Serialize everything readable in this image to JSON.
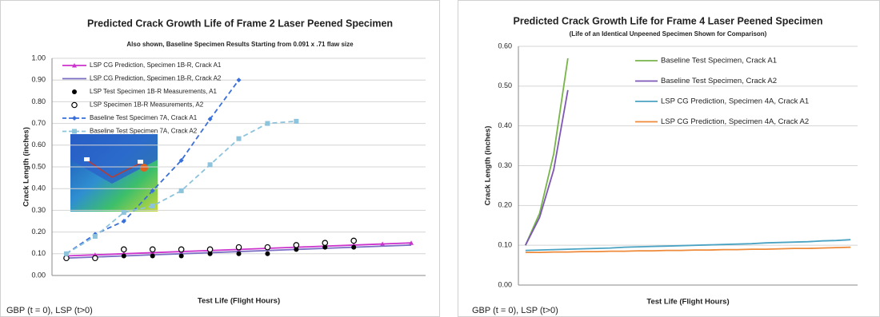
{
  "chart_data": [
    {
      "type": "line",
      "title": "Predicted Crack Growth Life of Frame 2 Laser Peened Specimen",
      "subtitle": "Also shown, Baseline Specimen Results Starting from 0.091 x .71 flaw size",
      "y_label": "Crack Length (inches)",
      "x_label": "Test Life (Flight Hours)",
      "footnote": "GBP (t = 0), LSP (t>0)",
      "legend": "upper left",
      "grid": true,
      "categories": [
        null,
        null,
        null,
        null,
        null,
        null,
        null,
        null,
        null,
        null,
        null,
        null,
        null
      ],
      "ylim": [
        0,
        1
      ],
      "yticks": [
        {
          "value": 0,
          "label": "0.00"
        },
        {
          "value": 0.1,
          "label": "0.10"
        },
        {
          "value": 0.2,
          "label": "0.20"
        },
        {
          "value": 0.3,
          "label": "0.30"
        },
        {
          "value": 0.4,
          "label": "0.40"
        },
        {
          "value": 0.5,
          "label": "0.50"
        },
        {
          "value": 0.6,
          "label": "0.60"
        },
        {
          "value": 0.7,
          "label": "0.70"
        },
        {
          "value": 0.8,
          "label": "0.80"
        },
        {
          "value": 0.9,
          "label": "0.90"
        },
        {
          "value": 1,
          "label": "1.00"
        }
      ],
      "series": [
        {
          "name": "LSP CG Prediction, Specimen 1B-R, Crack A1",
          "color": "#cc33cc",
          "marker": "triangle",
          "line": true,
          "dash": false,
          "values": [
            0.09,
            0.095,
            0.1,
            0.105,
            0.11,
            0.115,
            0.12,
            0.125,
            0.13,
            0.135,
            0.14,
            0.145,
            0.15
          ]
        },
        {
          "name": "LSP CG Prediction, Specimen 1B-R, Crack A2",
          "color": "#7b6fc4",
          "marker": "none",
          "line": true,
          "dash": false,
          "values": [
            0.08,
            0.085,
            0.09,
            0.095,
            0.1,
            0.105,
            0.11,
            0.115,
            0.12,
            0.125,
            0.13,
            0.135,
            0.14
          ]
        },
        {
          "name": "LSP Test Specimen 1B-R Measurements, A1",
          "color": "#000000",
          "marker": "circle",
          "line": false,
          "dash": false,
          "values": [
            0.08,
            0.08,
            0.09,
            0.09,
            0.09,
            0.1,
            0.1,
            0.1,
            0.12,
            0.13,
            0.13,
            null,
            null
          ]
        },
        {
          "name": "LSP Specimen 1B-R Measurements, A2",
          "color": "#000000",
          "marker": "open-circle",
          "line": false,
          "dash": false,
          "values": [
            0.08,
            0.08,
            0.12,
            0.12,
            0.12,
            0.12,
            0.13,
            0.13,
            0.14,
            0.15,
            0.16,
            null,
            null
          ]
        },
        {
          "name": "Baseline Test Specimen 7A, Crack A1",
          "color": "#3a6fd8",
          "marker": "diamond",
          "line": true,
          "dash": true,
          "values": [
            0.1,
            0.19,
            0.25,
            0.39,
            0.53,
            0.72,
            0.9,
            null,
            null,
            null,
            null,
            null,
            null
          ]
        },
        {
          "name": "Baseline Test Specimen 7A, Crack A2",
          "color": "#8ec3dc",
          "marker": "square",
          "line": true,
          "dash": true,
          "values": [
            0.1,
            0.18,
            0.29,
            0.32,
            0.39,
            0.51,
            0.63,
            0.7,
            0.71,
            null,
            null,
            null,
            null
          ]
        }
      ]
    },
    {
      "type": "line",
      "title": "Predicted Crack Growth Life for Frame 4 Laser Peened Specimen",
      "subtitle": "(Life of an Identical Unpeened Specimen Shown for Comparison)",
      "y_label": "Crack Length (inches)",
      "x_label": "Test Life (Flight Hours)",
      "footnote": "GBP (t = 0), LSP (t>0)",
      "legend": "upper center",
      "grid": true,
      "categories": [
        null,
        null,
        null,
        null,
        null,
        null,
        null,
        null,
        null,
        null,
        null,
        null,
        null,
        null,
        null,
        null,
        null,
        null,
        null,
        null,
        null,
        null,
        null,
        null
      ],
      "ylim": [
        0,
        0.6
      ],
      "yticks": [
        {
          "value": 0,
          "label": "0.00"
        },
        {
          "value": 0.1,
          "label": "0.10"
        },
        {
          "value": 0.2,
          "label": "0.20"
        },
        {
          "value": 0.3,
          "label": "0.30"
        },
        {
          "value": 0.4,
          "label": "0.40"
        },
        {
          "value": 0.5,
          "label": "0.50"
        },
        {
          "value": 0.6,
          "label": "0.60"
        }
      ],
      "series": [
        {
          "name": "Baseline Test Specimen, Crack A1",
          "color": "#77b548",
          "marker": "none",
          "line": true,
          "dash": false,
          "values": [
            0.1,
            0.18,
            0.33,
            0.57,
            null,
            null,
            null,
            null,
            null,
            null,
            null,
            null,
            null,
            null,
            null,
            null,
            null,
            null,
            null,
            null,
            null,
            null,
            null,
            null
          ]
        },
        {
          "name": "Baseline Test Specimen, Crack A2",
          "color": "#7e57b6",
          "marker": "none",
          "line": true,
          "dash": false,
          "values": [
            0.1,
            0.17,
            0.29,
            0.49,
            null,
            null,
            null,
            null,
            null,
            null,
            null,
            null,
            null,
            null,
            null,
            null,
            null,
            null,
            null,
            null,
            null,
            null,
            null,
            null
          ]
        },
        {
          "name": "LSP CG Prediction, Specimen 4A, Crack A1",
          "color": "#4ba3c3",
          "marker": "none",
          "line": true,
          "dash": false,
          "values": [
            0.087,
            0.088,
            0.089,
            0.09,
            0.091,
            0.092,
            0.093,
            0.095,
            0.096,
            0.097,
            0.098,
            0.099,
            0.1,
            0.101,
            0.102,
            0.103,
            0.104,
            0.106,
            0.107,
            0.108,
            0.109,
            0.111,
            0.112,
            0.114
          ]
        },
        {
          "name": "LSP CG Prediction, Specimen 4A, Crack A2",
          "color": "#ee8a3a",
          "marker": "none",
          "line": true,
          "dash": false,
          "values": [
            0.082,
            0.082,
            0.083,
            0.083,
            0.084,
            0.084,
            0.085,
            0.085,
            0.086,
            0.086,
            0.087,
            0.087,
            0.088,
            0.088,
            0.089,
            0.089,
            0.09,
            0.09,
            0.091,
            0.092,
            0.092,
            0.093,
            0.094,
            0.095
          ]
        }
      ]
    }
  ]
}
